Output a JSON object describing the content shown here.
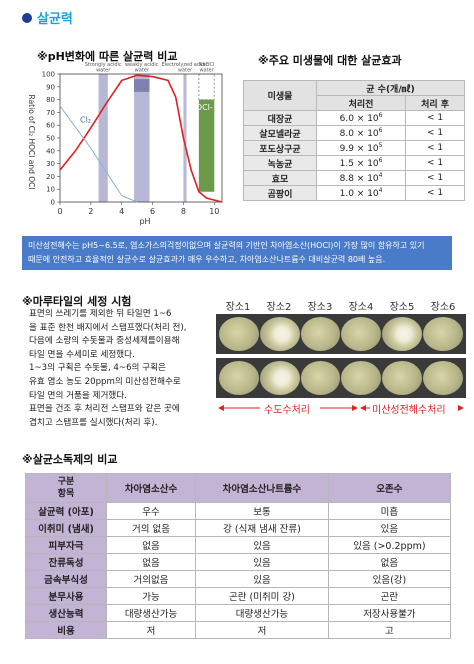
{
  "section_title": "살균력",
  "ph_chart": {
    "title": "※pH변화에 따른 살균력 비교",
    "xlabel": "pH",
    "ylabel": "Ratio of Cl₂ HOCl and OCl",
    "xticks": [
      "0",
      "2",
      "4",
      "6",
      "8",
      "10"
    ],
    "yticks": [
      "0",
      "10",
      "20",
      "30",
      "40",
      "50",
      "60",
      "70",
      "80",
      "90",
      "100"
    ],
    "zone_labels": [
      "Strongly acidic water",
      "weakly acidic water",
      "Electrolyzed acidic water",
      "NaOCl water"
    ],
    "series_labels": [
      "Cl₂",
      "HOCl",
      "OCl-"
    ],
    "colors": {
      "hocl": "#e02020",
      "cl2": "#7fb0e0",
      "ocl": "#6a9a4a",
      "zone": "#b8b8d6",
      "hocl_zone": "#8080b0"
    }
  },
  "chart_data": {
    "type": "line",
    "title": "",
    "xlabel": "pH",
    "ylabel": "Ratio of Cl₂ HOCl and OCl",
    "xlim": [
      0,
      10.5
    ],
    "ylim": [
      0,
      100
    ],
    "series": [
      {
        "name": "HOCl",
        "x": [
          0,
          1,
          2,
          3,
          4,
          5,
          6,
          7,
          7.5,
          8,
          8.5,
          9,
          9.5,
          10.5
        ],
        "y": [
          25,
          40,
          58,
          77,
          95,
          99,
          98,
          95,
          82,
          50,
          25,
          8,
          3,
          0
        ]
      }
    ]
  },
  "microbe_table": {
    "title": "※주요 미생물에 대한 살균효과",
    "header_org": "미생물",
    "header_count": "균 수(개/㎖)",
    "header_before": "처리전",
    "header_after": "처리 후",
    "rows": [
      {
        "org": "대장균",
        "mant": "6.0 × 10",
        "exp": "6",
        "after": "< 1"
      },
      {
        "org": "살모넬라균",
        "mant": "8.0 × 10",
        "exp": "6",
        "after": "< 1"
      },
      {
        "org": "포도상구균",
        "mant": "9.9 × 10",
        "exp": "5",
        "after": "< 1"
      },
      {
        "org": "녹농균",
        "mant": "1.5 × 10",
        "exp": "6",
        "after": "< 1"
      },
      {
        "org": "효모",
        "mant": "8.8 × 10",
        "exp": "4",
        "after": "< 1"
      },
      {
        "org": "곰팡이",
        "mant": "1.0 × 10",
        "exp": "4",
        "after": "< 1"
      }
    ]
  },
  "info_box": {
    "line1": "미산성전해수는 pH5~6.5로, 염소가스의걱정이없으며 살균력의 기반인 차아염소산(HOCl)이 가장 많이 함유하고 있기",
    "line2": "때문에 안전하고 효율적인 살균수로 살균효과가 매우 우수하고, 차아염소산나트륨수 대비살균력 80배 높음."
  },
  "marutile": {
    "title": "※마루타일의 세정 시험",
    "text": [
      "표면의 쓰레기를 제외한 뒤 타일면 1~6",
      "을 표준 한천 배지에서 스탬프했다(처리 전),",
      "다음에 소량의 수돗물과 중성세제를이용해",
      "타일 면을 수세미로 세정했다.",
      "1~3의 구획은 수돗물, 4~6의 구획은",
      "유효 염소 농도 20ppm의 미산성전해수로",
      "타일 면의 거품을 제거했다.",
      "표면을 건조 후 처리전 스탬프와 같은 곳에",
      "겹치고 스탬프를 실시했다(처리 후)."
    ],
    "photo_labels": [
      "장소1",
      "장소2",
      "장소3",
      "장소4",
      "장소5",
      "장소6"
    ],
    "tap_label": "수도수처리",
    "electro_label": "미산성전해수처리"
  },
  "compare_table": {
    "title": "※살균소독제의 비교",
    "corner": [
      "구분",
      "항목"
    ],
    "columns": [
      "차아염소산수",
      "차아염소산나트륨수",
      "오존수"
    ],
    "rows": [
      {
        "label": "살균력 (아포)",
        "values": [
          "우수",
          "보통",
          "미흡"
        ]
      },
      {
        "label": "이취미 (냄새)",
        "values": [
          "거의 없음",
          "강 (식재 냄새 잔류)",
          "있음"
        ]
      },
      {
        "label": "피부자극",
        "values": [
          "없음",
          "있음",
          "있음 (>0.2ppm)"
        ]
      },
      {
        "label": "잔류독성",
        "values": [
          "없음",
          "있음",
          "없음"
        ]
      },
      {
        "label": "금속부식성",
        "values": [
          "거의없음",
          "있음",
          "있음(강)"
        ]
      },
      {
        "label": "분무사용",
        "values": [
          "가능",
          "곤란 (미취미 강)",
          "곤란"
        ]
      },
      {
        "label": "생산능력",
        "values": [
          "대량생산가능",
          "대량생산가능",
          "저장사용불가"
        ]
      },
      {
        "label": "비용",
        "values": [
          "저",
          "저",
          "고"
        ]
      }
    ]
  }
}
